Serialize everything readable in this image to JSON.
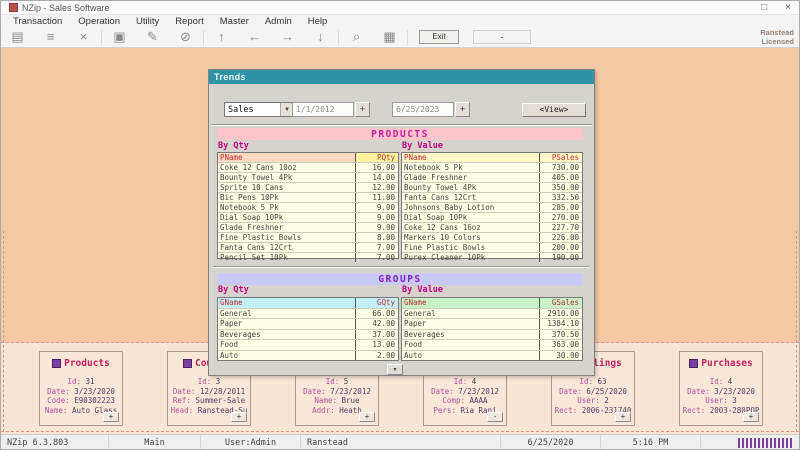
{
  "window": {
    "title": "NZip - Sales Software",
    "license_line1": "Ranstead",
    "license_line2": "Licensed"
  },
  "menu": {
    "items": [
      "Transaction",
      "Operation",
      "Utility",
      "Report",
      "Master",
      "Admin",
      "Help"
    ]
  },
  "toolbar": {
    "icons": [
      "new-document",
      "list",
      "delete",
      "save",
      "pin",
      "cancel",
      "arrow-up",
      "arrow-left",
      "arrow-right",
      "arrow-down",
      "search",
      "grid"
    ],
    "exit_label": "Exit",
    "dropdown_value": "-"
  },
  "dialog": {
    "title": "Trends",
    "filter_type": "Sales",
    "date_from": "1/1/2012",
    "date_to": "6/25/2023",
    "date_picker_label": "+",
    "view_button": "<View>",
    "products": {
      "header": "PRODUCTS",
      "by_qty_label": "By Qty",
      "by_value_label": "By Value",
      "qty_table": {
        "columns": [
          "PName",
          "PQty"
        ],
        "rows": [
          [
            "Coke 12 Cans 10oz",
            "16.00"
          ],
          [
            "Bounty Towel 4Pk",
            "14.00"
          ],
          [
            "Sprite 10 Cans",
            "12.00"
          ],
          [
            "Bic Pens 10Pk",
            "11.00"
          ],
          [
            "Notebook 5 Pk",
            "9.00"
          ],
          [
            "Dial Soap 10Pk",
            "9.00"
          ],
          [
            "Glade Freshner",
            "9.00"
          ],
          [
            "Fine Plastic Bowls",
            "8.00"
          ],
          [
            "Fanta Cans 12Crt",
            "7.00"
          ],
          [
            "Pencil Set 10Pk",
            "7.00"
          ]
        ]
      },
      "value_table": {
        "columns": [
          "PName",
          "PSales"
        ],
        "rows": [
          [
            "Notebook 5 Pk",
            "730.00"
          ],
          [
            "Glade Freshner",
            "405.00"
          ],
          [
            "Bounty Towel 4Pk",
            "350.00"
          ],
          [
            "Fanta Cans 12Crt",
            "332.50"
          ],
          [
            "Johnsons Baby Lotion",
            "285.00"
          ],
          [
            "Dial Soap 10Pk",
            "270.00"
          ],
          [
            "Coke 12 Cans 16oz",
            "227.70"
          ],
          [
            "Markers 10 Colors",
            "226.00"
          ],
          [
            "Fine Plastic Bowls",
            "200.00"
          ],
          [
            "Purex Cleaner 10Pk",
            "190.00"
          ]
        ]
      }
    },
    "groups": {
      "header": "GROUPS",
      "by_qty_label": "By Qty",
      "by_value_label": "By Value",
      "qty_table": {
        "columns": [
          "GName",
          "GQty"
        ],
        "rows": [
          [
            "General",
            "66.00"
          ],
          [
            "Paper",
            "42.00"
          ],
          [
            "Beverages",
            "37.00"
          ],
          [
            "Food",
            "13.00"
          ],
          [
            "Auto",
            "2.00"
          ]
        ]
      },
      "value_table": {
        "columns": [
          "GName",
          "GSales"
        ],
        "rows": [
          [
            "General",
            "2910.00"
          ],
          [
            "Paper",
            "1384.10"
          ],
          [
            "Beverages",
            "370.50"
          ],
          [
            "Food",
            "363.00"
          ],
          [
            "Auto",
            "30.00"
          ]
        ]
      }
    }
  },
  "cards": [
    {
      "title": "Products",
      "lines": [
        [
          "Id:",
          "31"
        ],
        [
          "Date:",
          "3/23/2020"
        ],
        [
          "Code:",
          "E90302223"
        ],
        [
          "Name:",
          "Auto Glass"
        ]
      ],
      "button": "+"
    },
    {
      "title": "Coupons",
      "lines": [
        [
          "Id:",
          "3"
        ],
        [
          "Date:",
          "12/28/2011"
        ],
        [
          "Ref:",
          "Summer-Sale"
        ],
        [
          "Head:",
          "Ranstead-Su"
        ]
      ],
      "button": "+"
    },
    {
      "title": "",
      "lines": [
        [
          "Id:",
          "5"
        ],
        [
          "Date:",
          "7/23/2012"
        ],
        [
          "Name:",
          "Brue"
        ],
        [
          "Addr:",
          "Heath"
        ]
      ],
      "button": "+"
    },
    {
      "title": "",
      "lines": [
        [
          "Id:",
          "4"
        ],
        [
          "Date:",
          "7/23/2012"
        ],
        [
          "Comp:",
          "AAAA"
        ],
        [
          "Pers:",
          "Ria Ranj"
        ]
      ],
      "button": "-"
    },
    {
      "title": "Billings",
      "lines": [
        [
          "Id:",
          "63"
        ],
        [
          "Date:",
          "6/25/2020"
        ],
        [
          "User:",
          "2"
        ],
        [
          "Rect:",
          "2006-231740"
        ]
      ],
      "button": "+"
    },
    {
      "title": "Purchases",
      "lines": [
        [
          "Id:",
          "4"
        ],
        [
          "Date:",
          "3/23/2020"
        ],
        [
          "User:",
          "3"
        ],
        [
          "Rect:",
          "2003-280POP"
        ]
      ],
      "button": "+"
    }
  ],
  "statusbar": {
    "segments": [
      "NZip 6.3.803",
      "Main",
      "User:Admin",
      "Ranstead",
      "6/25/2020",
      "5:16 PM"
    ]
  },
  "icons": {
    "dropdown_arrow": "▼",
    "scroll_down": "▼",
    "window_maximize": "□",
    "window_close": "×"
  },
  "colors": {
    "dialog_titlebar": "#2E93A5",
    "products_header_bg": "#FFC5CB",
    "groups_header_bg": "#C9C9F5",
    "desktop": "#F5C9A3",
    "bottom_panel": "#FAE4D4",
    "barcode": "#7A3FA0"
  }
}
